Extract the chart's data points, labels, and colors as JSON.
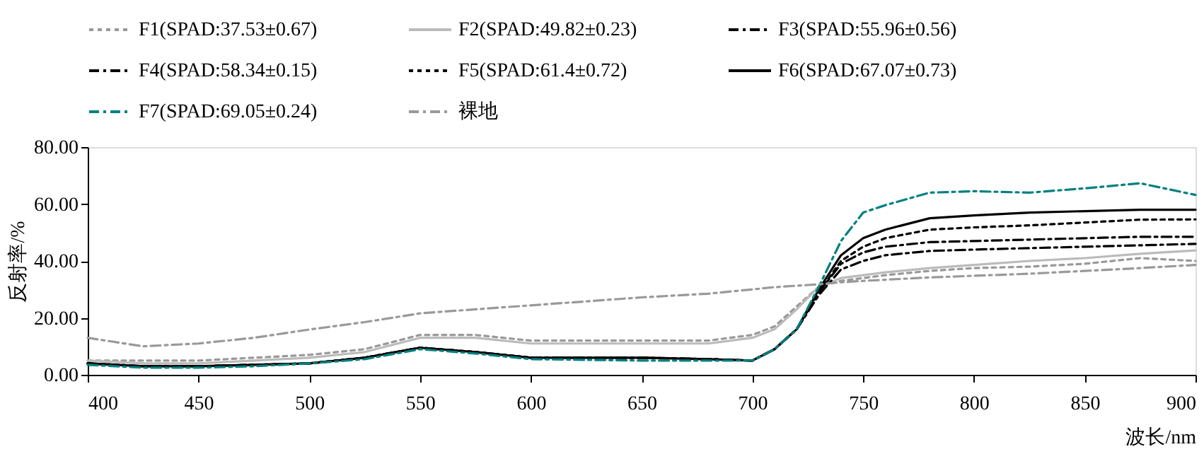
{
  "chart_data": {
    "type": "line",
    "xlabel": "波长/nm",
    "ylabel": "反射率/%",
    "xlim": [
      400,
      900
    ],
    "ylim": [
      0,
      80
    ],
    "xticks": [
      400,
      450,
      500,
      550,
      600,
      650,
      700,
      750,
      800,
      850,
      900
    ],
    "yticks": [
      {
        "value": 0,
        "label": "0.00"
      },
      {
        "value": 20,
        "label": "20.00"
      },
      {
        "value": 40,
        "label": "40.00"
      },
      {
        "value": 60,
        "label": "60.00"
      },
      {
        "value": 80,
        "label": "80.00"
      }
    ],
    "grid": false,
    "legend": "top",
    "marker": "none",
    "x": [
      400,
      425,
      450,
      475,
      500,
      525,
      550,
      575,
      600,
      650,
      680,
      700,
      710,
      720,
      730,
      740,
      750,
      760,
      780,
      800,
      825,
      850,
      875,
      900
    ],
    "series": [
      {
        "name": "F1(SPAD:37.53±0.67)",
        "color": "#999999",
        "line_style": "dotted",
        "values": [
          5,
          5,
          5,
          6,
          7,
          9,
          14,
          14,
          12,
          12,
          12,
          14,
          17,
          24,
          31,
          33,
          34,
          35,
          36.5,
          37.5,
          38,
          39,
          41,
          40
        ]
      },
      {
        "name": "F2(SPAD:49.82±0.23)",
        "color": "#bbbbbb",
        "line_style": "solid",
        "values": [
          5,
          4,
          4,
          5,
          6,
          8,
          13,
          13,
          11,
          11,
          11,
          13,
          16,
          23,
          31,
          34,
          35,
          36,
          37.5,
          38.6,
          40,
          41,
          42.5,
          43.7
        ]
      },
      {
        "name": "F3(SPAD:55.96±0.56)",
        "color": "#000000",
        "line_style": "dashed",
        "values": [
          4,
          3,
          3,
          3.5,
          4,
          6,
          9.5,
          8,
          6,
          6,
          5.5,
          5,
          9,
          16,
          29,
          39,
          43,
          45,
          46.6,
          47,
          47.5,
          48,
          48.5,
          48.5
        ]
      },
      {
        "name": "F4(SPAD:58.34±0.15)",
        "color": "#000000",
        "line_style": "dashed",
        "values": [
          4,
          3,
          3,
          3.5,
          4,
          6,
          9.5,
          8,
          6,
          6,
          5.5,
          5,
          9,
          16,
          28,
          37,
          40,
          42,
          43.5,
          44,
          44.5,
          45,
          45.5,
          46
        ]
      },
      {
        "name": "F5(SPAD:61.4±0.72)",
        "color": "#000000",
        "line_style": "dotted",
        "values": [
          4,
          3,
          3,
          3.5,
          4,
          6,
          9.5,
          8,
          6,
          6,
          5.5,
          5,
          9,
          16,
          29,
          40,
          45,
          48,
          51,
          51.8,
          52.5,
          53.5,
          54.5,
          54.6
        ]
      },
      {
        "name": "F6(SPAD:67.07±0.73)",
        "color": "#000000",
        "line_style": "solid",
        "values": [
          4,
          3,
          3,
          3.5,
          4,
          6,
          9.5,
          8,
          6,
          6,
          5.5,
          5,
          9,
          16,
          30,
          42,
          48,
          51,
          55,
          56,
          57,
          57.5,
          58,
          58
        ]
      },
      {
        "name": "F7(SPAD:69.05±0.24)",
        "color": "#008080",
        "line_style": "dashed",
        "values": [
          3.5,
          2.5,
          2.5,
          3,
          4,
          5.5,
          9,
          7.5,
          5.5,
          5,
          5,
          5,
          9,
          16,
          31,
          47,
          57,
          59.6,
          64,
          64.5,
          64,
          65.5,
          67.3,
          63.2
        ]
      },
      {
        "name": "裸地",
        "color": "#999999",
        "line_style": "dashed",
        "values": [
          13,
          10,
          11,
          13,
          15.9,
          18.5,
          21.6,
          23,
          24.4,
          27.2,
          28.5,
          30,
          30.8,
          31.3,
          31.8,
          32.5,
          33,
          33.4,
          34.2,
          34.8,
          35.5,
          36.5,
          37.5,
          38.6
        ]
      }
    ]
  }
}
